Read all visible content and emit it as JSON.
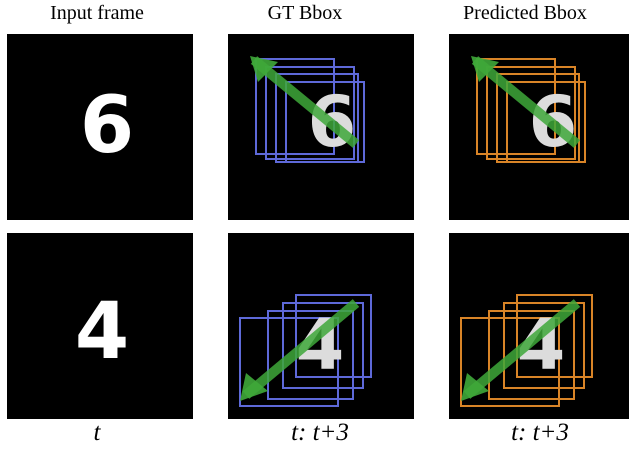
{
  "headers": [
    "Input frame",
    "GT Bbox",
    "Predicted Bbox"
  ],
  "footers": [
    "t",
    "t: t+3",
    "t: t+3"
  ],
  "digits": [
    "6",
    "4"
  ],
  "colors": {
    "gt_box": "#6f7cff",
    "pred_box": "#ff9c2e",
    "arrow": "#3fa83a",
    "background": "#000000",
    "digit": "#ffffff"
  }
}
